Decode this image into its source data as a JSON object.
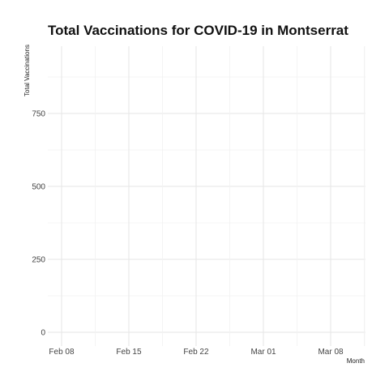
{
  "chart_data": {
    "type": "line",
    "title": "Total Vaccinations for COVID-19 in Montserrat",
    "xlabel": "Month",
    "ylabel": "Total Vaccinations",
    "x_ticks": [
      "Feb 08",
      "Feb 15",
      "Feb 22",
      "Mar 01",
      "Mar 08"
    ],
    "x_range": [
      "2021-02-08",
      "2021-03-12"
    ],
    "y_ticks": [
      0,
      250,
      500,
      750
    ],
    "ylim": [
      0,
      1000
    ],
    "grid": true,
    "series": []
  }
}
